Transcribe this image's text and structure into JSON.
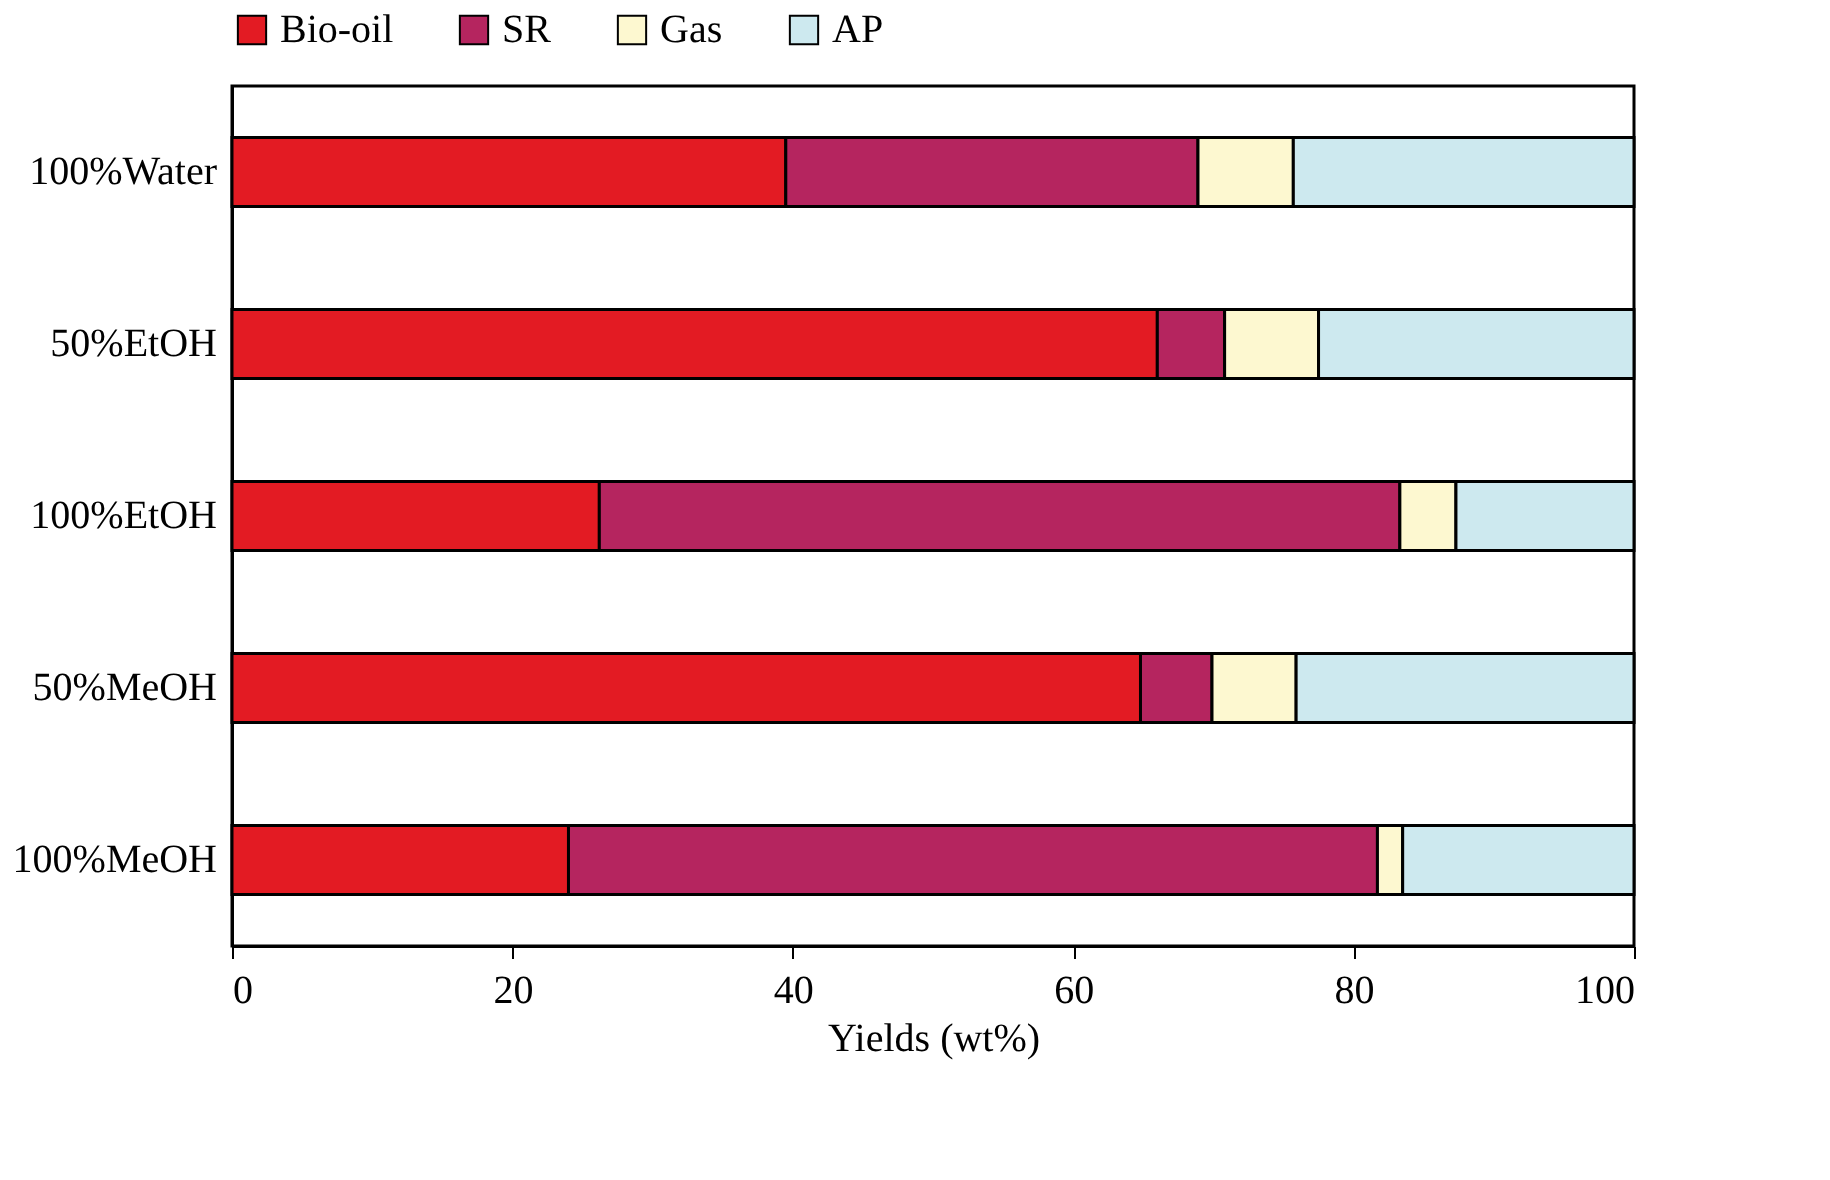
{
  "chart_data": {
    "type": "bar",
    "orientation": "horizontal",
    "stacked": true,
    "xlabel": "Yields (wt%)",
    "categories": [
      "100%Water",
      "50%EtOH",
      "100%EtOH",
      "50%MeOH",
      "100%MeOH"
    ],
    "series": [
      {
        "name": "Bio-oil",
        "color": "#e31b23",
        "values": [
          39.5,
          66.0,
          26.2,
          64.8,
          24.0
        ]
      },
      {
        "name": "SR",
        "color": "#b5255f",
        "values": [
          29.4,
          4.8,
          57.1,
          5.1,
          57.7
        ]
      },
      {
        "name": "Gas",
        "color": "#fdf8d0",
        "values": [
          6.8,
          6.7,
          4.0,
          6.0,
          1.8
        ]
      },
      {
        "name": "AP",
        "color": "#cde9ef",
        "values": [
          24.3,
          22.5,
          12.7,
          24.1,
          16.5
        ]
      }
    ],
    "xlim": [
      0,
      100
    ],
    "xticks": [
      0,
      20,
      40,
      60,
      80,
      100
    ],
    "grid": false,
    "legend": "top"
  }
}
